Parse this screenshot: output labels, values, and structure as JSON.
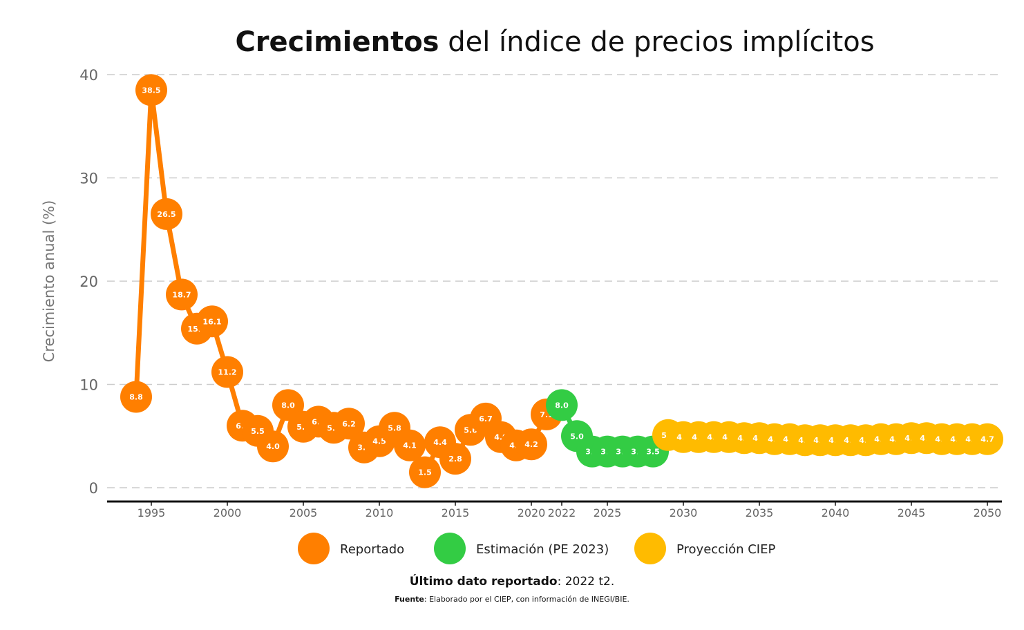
{
  "chart_data": {
    "type": "line",
    "title_bold": "Crecimientos",
    "title_rest": " del índice de precios implícitos",
    "ylabel": "Crecimiento anual (%)",
    "xlabel": "",
    "ylim": [
      0,
      40
    ],
    "y_ticks": [
      0,
      10,
      20,
      30,
      40
    ],
    "x_ticks": [
      1995,
      2000,
      2005,
      2010,
      2015,
      2020,
      2022,
      2025,
      2030,
      2035,
      2040,
      2045,
      2050
    ],
    "grid": "horizontal dashed",
    "legend_position": "bottom",
    "series": [
      {
        "name": "Reportado",
        "color": "#FF7F00",
        "x": [
          1994,
          1995,
          1996,
          1997,
          1998,
          1999,
          2000,
          2001,
          2002,
          2003,
          2004,
          2005,
          2006,
          2007,
          2008,
          2009,
          2010,
          2011,
          2012,
          2013,
          2014,
          2015,
          2016,
          2017,
          2018,
          2019,
          2020,
          2021
        ],
        "y": [
          8.8,
          38.5,
          26.5,
          18.7,
          15.4,
          16.1,
          11.2,
          6.0,
          5.5,
          4.0,
          8.0,
          5.9,
          6.4,
          5.8,
          6.2,
          3.9,
          4.5,
          5.8,
          4.1,
          1.5,
          4.4,
          2.8,
          5.6,
          6.7,
          4.9,
          4.1,
          4.2,
          7.1
        ]
      },
      {
        "name": "Estimación (PE 2023)",
        "color": "#33CC44",
        "x": [
          2022,
          2023,
          2024,
          2025,
          2026,
          2027,
          2028
        ],
        "y": [
          8.0,
          5.0,
          3.5,
          3.5,
          3.5,
          3.5,
          3.5
        ]
      },
      {
        "name": "Proyección CIEP",
        "color": "#FFBB00",
        "x": [
          2029,
          2030,
          2031,
          2032,
          2033,
          2034,
          2035,
          2036,
          2037,
          2038,
          2039,
          2040,
          2041,
          2042,
          2043,
          2044,
          2045,
          2046,
          2047,
          2048,
          2049,
          2050
        ],
        "y": [
          5.1,
          4.9,
          4.9,
          4.9,
          4.9,
          4.8,
          4.8,
          4.7,
          4.7,
          4.6,
          4.6,
          4.6,
          4.6,
          4.6,
          4.7,
          4.7,
          4.8,
          4.8,
          4.7,
          4.7,
          4.7,
          4.7
        ]
      }
    ]
  },
  "footer": {
    "note_bold": "Último dato reportado",
    "note_rest": ": 2022 t2.",
    "source_bold": "Fuente",
    "source_rest": ": Elaborado por el CIEP, con información de INEGI/BIE."
  }
}
